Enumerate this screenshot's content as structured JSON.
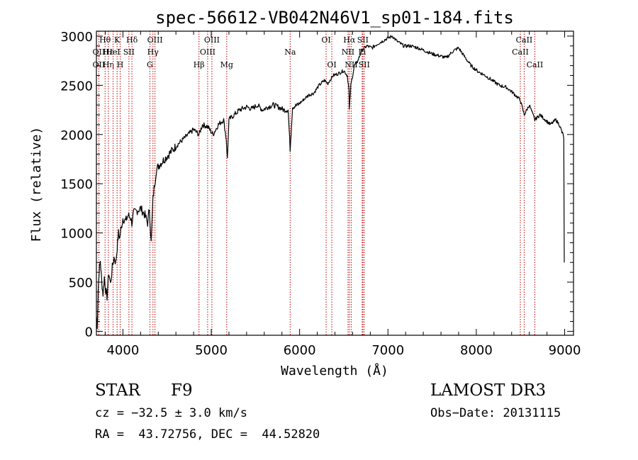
{
  "chart_data": {
    "type": "line",
    "title": "spec-56612-VB042N46V1_sp01-184.fits",
    "xlabel": "Wavelength (Å)",
    "ylabel": "Flux (relative)",
    "xlim": [
      3700,
      9100
    ],
    "ylim": [
      -40,
      3050
    ],
    "xticks": [
      4000,
      5000,
      6000,
      7000,
      8000,
      9000
    ],
    "xtick_labels": [
      "4000",
      "5000",
      "6000",
      "7000",
      "8000",
      "9000"
    ],
    "yticks": [
      0,
      500,
      1000,
      1500,
      2000,
      2500,
      3000
    ],
    "ytick_labels": [
      "0",
      "500",
      "1000",
      "1500",
      "2000",
      "2500",
      "3000"
    ],
    "grid": false,
    "series": [
      {
        "name": "spectrum",
        "color": "#000000",
        "x": [
          3700,
          3710,
          3720,
          3730,
          3745,
          3760,
          3775,
          3790,
          3805,
          3820,
          3840,
          3860,
          3880,
          3900,
          3920,
          3935,
          3950,
          3965,
          3980,
          4000,
          4030,
          4060,
          4090,
          4101,
          4120,
          4150,
          4200,
          4250,
          4280,
          4300,
          4320,
          4340,
          4360,
          4380,
          4420,
          4470,
          4520,
          4570,
          4620,
          4680,
          4740,
          4800,
          4861,
          4900,
          4960,
          5020,
          5080,
          5140,
          5170,
          5183,
          5200,
          5260,
          5320,
          5400,
          5460,
          5520,
          5580,
          5640,
          5700,
          5760,
          5820,
          5870,
          5893,
          5920,
          5980,
          6040,
          6100,
          6160,
          6220,
          6280,
          6320,
          6380,
          6440,
          6500,
          6540,
          6560,
          6563,
          6580,
          6620,
          6660,
          6700,
          6760,
          6820,
          6880,
          6940,
          7000,
          7050,
          7100,
          7180,
          7260,
          7340,
          7420,
          7500,
          7580,
          7660,
          7740,
          7800,
          7860,
          7940,
          8020,
          8100,
          8180,
          8260,
          8340,
          8420,
          8498,
          8542,
          8600,
          8662,
          8720,
          8780,
          8840,
          8900,
          8940,
          8970,
          8985,
          8990,
          8993,
          8996
        ],
        "values": [
          150,
          60,
          420,
          600,
          720,
          500,
          380,
          550,
          420,
          350,
          600,
          480,
          650,
          750,
          700,
          850,
          1000,
          950,
          1050,
          1150,
          1120,
          1180,
          1150,
          1100,
          1200,
          1220,
          1250,
          1180,
          1100,
          1250,
          900,
          1350,
          1500,
          1650,
          1700,
          1750,
          1800,
          1850,
          1900,
          1950,
          2000,
          2050,
          2000,
          2100,
          2080,
          2000,
          2100,
          2150,
          1950,
          1750,
          2150,
          2200,
          2250,
          2280,
          2260,
          2300,
          2250,
          2280,
          2300,
          2280,
          2250,
          2250,
          1850,
          2280,
          2300,
          2350,
          2400,
          2420,
          2500,
          2550,
          2520,
          2600,
          2620,
          2650,
          2600,
          2450,
          2250,
          2500,
          2700,
          2750,
          2850,
          2900,
          2880,
          2920,
          2950,
          2980,
          3000,
          2950,
          2900,
          2900,
          2880,
          2850,
          2820,
          2800,
          2780,
          2850,
          2880,
          2800,
          2700,
          2640,
          2600,
          2550,
          2500,
          2480,
          2420,
          2350,
          2200,
          2300,
          2150,
          2200,
          2150,
          2100,
          2150,
          2100,
          2020,
          2000,
          1950,
          1200,
          700
        ]
      }
    ],
    "lines": [
      {
        "label": "Hθ",
        "x": 3798,
        "row": 1
      },
      {
        "label": "OII",
        "x": 3727,
        "row": 2
      },
      {
        "label": "OII",
        "x": 3727,
        "row": 3
      },
      {
        "label": "Hε",
        "x": 3835,
        "row": 2
      },
      {
        "label": "Hη",
        "x": 3835,
        "row": 3
      },
      {
        "label": "K",
        "x": 3934,
        "row": 1
      },
      {
        "label": "HeI",
        "x": 3889,
        "row": 2
      },
      {
        "label": "H",
        "x": 3969,
        "row": 3
      },
      {
        "label": "Hδ",
        "x": 4102,
        "row": 1
      },
      {
        "label": "SII",
        "x": 4068,
        "row": 2
      },
      {
        "label": "OIII",
        "x": 4363,
        "row": 1
      },
      {
        "label": "Hγ",
        "x": 4340,
        "row": 2
      },
      {
        "label": "G",
        "x": 4305,
        "row": 3
      },
      {
        "label": "Hβ",
        "x": 4861,
        "row": 3
      },
      {
        "label": "OIII",
        "x": 5007,
        "row": 1
      },
      {
        "label": "OIII",
        "x": 4959,
        "row": 2
      },
      {
        "label": "Mg",
        "x": 5175,
        "row": 3
      },
      {
        "label": "Na",
        "x": 5893,
        "row": 2
      },
      {
        "label": "OI",
        "x": 6300,
        "row": 1
      },
      {
        "label": "OI",
        "x": 6364,
        "row": 3
      },
      {
        "label": "Hα",
        "x": 6563,
        "row": 1
      },
      {
        "label": "SII",
        "x": 6716,
        "row": 1
      },
      {
        "label": "NII",
        "x": 6548,
        "row": 2
      },
      {
        "label": "NII",
        "x": 6584,
        "row": 3
      },
      {
        "label": "Li",
        "x": 6708,
        "row": 2
      },
      {
        "label": "SII",
        "x": 6731,
        "row": 3
      },
      {
        "label": "CaII",
        "x": 8542,
        "row": 1
      },
      {
        "label": "CaII",
        "x": 8498,
        "row": 2
      },
      {
        "label": "CaII",
        "x": 8662,
        "row": 3
      }
    ]
  },
  "info": {
    "class_label": "STAR",
    "subclass": "F9",
    "survey": "LAMOST DR3",
    "velocity": "cz = −32.5 ± 3.0 km/s",
    "obs_date": "Obs−Date: 20131115",
    "coords": "RA =  43.72756, DEC =  44.52820"
  }
}
